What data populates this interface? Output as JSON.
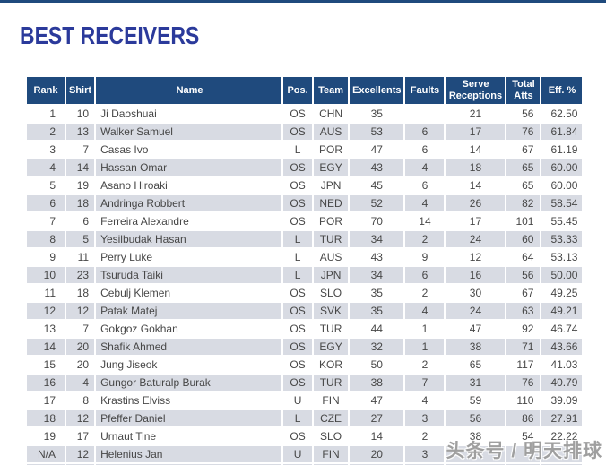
{
  "page": {
    "title": "BEST RECEIVERS"
  },
  "watermark": {
    "text": "头条号 / 明天排球"
  },
  "colors": {
    "header_bg": "#1F4A7D",
    "alt_row": "#D8DBE3",
    "title_color": "#2B3A9B",
    "top_line": "#1F4A7D"
  },
  "table": {
    "columns": [
      {
        "key": "rank",
        "label": "Rank"
      },
      {
        "key": "shirt",
        "label": "Shirt"
      },
      {
        "key": "name",
        "label": "Name"
      },
      {
        "key": "pos",
        "label": "Pos."
      },
      {
        "key": "team",
        "label": "Team"
      },
      {
        "key": "excellents",
        "label": "Excellents"
      },
      {
        "key": "faults",
        "label": "Faults"
      },
      {
        "key": "serve_receptions",
        "label": "Serve Receptions"
      },
      {
        "key": "total_atts",
        "label": "Total Atts"
      },
      {
        "key": "eff",
        "label": "Eff. %"
      }
    ],
    "rows": [
      {
        "rank": "1",
        "shirt": "10",
        "name": "Ji Daoshuai",
        "pos": "OS",
        "team": "CHN",
        "excellents": "35",
        "faults": "",
        "serve_receptions": "21",
        "total_atts": "56",
        "eff": "62.50"
      },
      {
        "rank": "2",
        "shirt": "13",
        "name": "Walker Samuel",
        "pos": "OS",
        "team": "AUS",
        "excellents": "53",
        "faults": "6",
        "serve_receptions": "17",
        "total_atts": "76",
        "eff": "61.84"
      },
      {
        "rank": "3",
        "shirt": "7",
        "name": "Casas Ivo",
        "pos": "L",
        "team": "POR",
        "excellents": "47",
        "faults": "6",
        "serve_receptions": "14",
        "total_atts": "67",
        "eff": "61.19"
      },
      {
        "rank": "4",
        "shirt": "14",
        "name": "Hassan Omar",
        "pos": "OS",
        "team": "EGY",
        "excellents": "43",
        "faults": "4",
        "serve_receptions": "18",
        "total_atts": "65",
        "eff": "60.00"
      },
      {
        "rank": "5",
        "shirt": "19",
        "name": "Asano Hiroaki",
        "pos": "OS",
        "team": "JPN",
        "excellents": "45",
        "faults": "6",
        "serve_receptions": "14",
        "total_atts": "65",
        "eff": "60.00"
      },
      {
        "rank": "6",
        "shirt": "18",
        "name": "Andringa Robbert",
        "pos": "OS",
        "team": "NED",
        "excellents": "52",
        "faults": "4",
        "serve_receptions": "26",
        "total_atts": "82",
        "eff": "58.54"
      },
      {
        "rank": "7",
        "shirt": "6",
        "name": "Ferreira Alexandre",
        "pos": "OS",
        "team": "POR",
        "excellents": "70",
        "faults": "14",
        "serve_receptions": "17",
        "total_atts": "101",
        "eff": "55.45"
      },
      {
        "rank": "8",
        "shirt": "5",
        "name": "Yesilbudak Hasan",
        "pos": "L",
        "team": "TUR",
        "excellents": "34",
        "faults": "2",
        "serve_receptions": "24",
        "total_atts": "60",
        "eff": "53.33"
      },
      {
        "rank": "9",
        "shirt": "11",
        "name": "Perry Luke",
        "pos": "L",
        "team": "AUS",
        "excellents": "43",
        "faults": "9",
        "serve_receptions": "12",
        "total_atts": "64",
        "eff": "53.13"
      },
      {
        "rank": "10",
        "shirt": "23",
        "name": "Tsuruda Taiki",
        "pos": "L",
        "team": "JPN",
        "excellents": "34",
        "faults": "6",
        "serve_receptions": "16",
        "total_atts": "56",
        "eff": "50.00"
      },
      {
        "rank": "11",
        "shirt": "18",
        "name": "Cebulj Klemen",
        "pos": "OS",
        "team": "SLO",
        "excellents": "35",
        "faults": "2",
        "serve_receptions": "30",
        "total_atts": "67",
        "eff": "49.25"
      },
      {
        "rank": "12",
        "shirt": "12",
        "name": "Patak Matej",
        "pos": "OS",
        "team": "SVK",
        "excellents": "35",
        "faults": "4",
        "serve_receptions": "24",
        "total_atts": "63",
        "eff": "49.21"
      },
      {
        "rank": "13",
        "shirt": "7",
        "name": "Gokgoz Gokhan",
        "pos": "OS",
        "team": "TUR",
        "excellents": "44",
        "faults": "1",
        "serve_receptions": "47",
        "total_atts": "92",
        "eff": "46.74"
      },
      {
        "rank": "14",
        "shirt": "20",
        "name": "Shafik Ahmed",
        "pos": "OS",
        "team": "EGY",
        "excellents": "32",
        "faults": "1",
        "serve_receptions": "38",
        "total_atts": "71",
        "eff": "43.66"
      },
      {
        "rank": "15",
        "shirt": "20",
        "name": "Jung Jiseok",
        "pos": "OS",
        "team": "KOR",
        "excellents": "50",
        "faults": "2",
        "serve_receptions": "65",
        "total_atts": "117",
        "eff": "41.03"
      },
      {
        "rank": "16",
        "shirt": "4",
        "name": "Gungor Baturalp Burak",
        "pos": "OS",
        "team": "TUR",
        "excellents": "38",
        "faults": "7",
        "serve_receptions": "31",
        "total_atts": "76",
        "eff": "40.79"
      },
      {
        "rank": "17",
        "shirt": "8",
        "name": "Krastins Elviss",
        "pos": "U",
        "team": "FIN",
        "excellents": "47",
        "faults": "4",
        "serve_receptions": "59",
        "total_atts": "110",
        "eff": "39.09"
      },
      {
        "rank": "18",
        "shirt": "12",
        "name": "Pfeffer Daniel",
        "pos": "L",
        "team": "CZE",
        "excellents": "27",
        "faults": "3",
        "serve_receptions": "56",
        "total_atts": "86",
        "eff": "27.91"
      },
      {
        "rank": "19",
        "shirt": "17",
        "name": "Urnaut Tine",
        "pos": "OS",
        "team": "SLO",
        "excellents": "14",
        "faults": "2",
        "serve_receptions": "38",
        "total_atts": "54",
        "eff": "22.22"
      },
      {
        "rank": "N/A",
        "shirt": "12",
        "name": "Helenius Jan",
        "pos": "U",
        "team": "FIN",
        "excellents": "20",
        "faults": "3",
        "serve_receptions": "",
        "total_atts": "",
        "eff": ""
      }
    ]
  }
}
